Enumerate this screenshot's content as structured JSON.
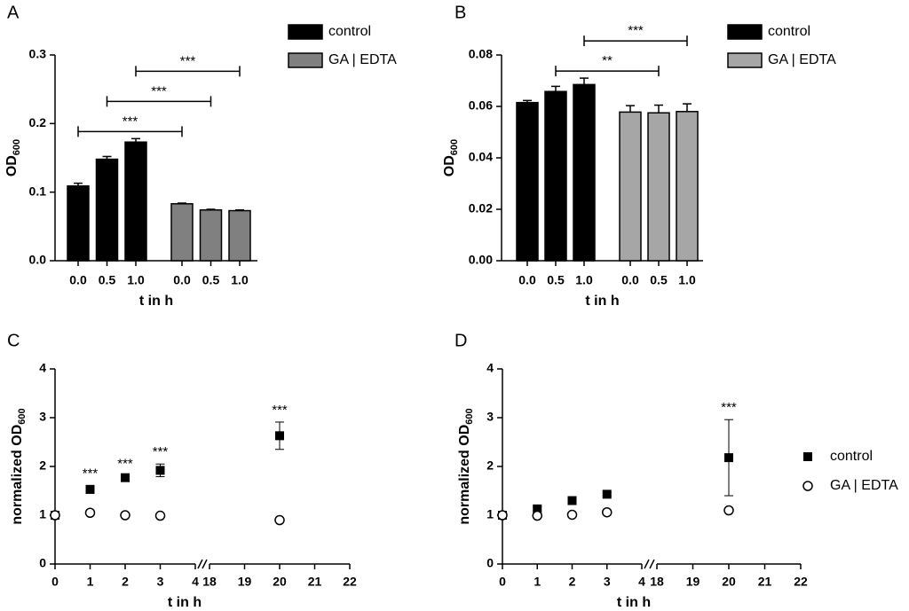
{
  "chart_data": [
    {
      "type": "bar",
      "panel_label": "A",
      "xlabel": "t in h",
      "ylabel": "OD",
      "ylabel_sub": "600",
      "categories": [
        "0.0",
        "0.5",
        "1.0"
      ],
      "series": [
        {
          "name": "control",
          "color": "#000000",
          "values": [
            0.109,
            0.148,
            0.173
          ],
          "errors": [
            0.004,
            0.004,
            0.005
          ]
        },
        {
          "name": "GA | EDTA",
          "color": "#808080",
          "values": [
            0.083,
            0.074,
            0.073
          ],
          "errors": [
            0.001,
            0.001,
            0.001
          ]
        }
      ],
      "ylim": [
        0,
        0.3
      ],
      "yticks": [
        {
          "value": 0,
          "label": "0.0"
        },
        0.1,
        0.2,
        0.3
      ],
      "legend": true,
      "brackets": [
        {
          "index": 0,
          "label": "***"
        },
        {
          "index": 1,
          "label": "***"
        },
        {
          "index": 2,
          "label": "***"
        }
      ]
    },
    {
      "type": "bar",
      "panel_label": "B",
      "xlabel": "t in h",
      "ylabel": "OD",
      "ylabel_sub": "600",
      "categories": [
        "0.0",
        "0.5",
        "1.0"
      ],
      "series": [
        {
          "name": "control",
          "color": "#000000",
          "values": [
            0.0615,
            0.0658,
            0.0685
          ],
          "errors": [
            0.0008,
            0.002,
            0.0025
          ]
        },
        {
          "name": "GA | EDTA",
          "color": "#a6a6a6",
          "values": [
            0.0578,
            0.0575,
            0.058
          ],
          "errors": [
            0.0025,
            0.003,
            0.003
          ]
        }
      ],
      "ylim": [
        0,
        0.08
      ],
      "yticks": [
        {
          "value": 0,
          "label": "0.00"
        },
        {
          "value": 0.02,
          "label": "0.02"
        },
        {
          "value": 0.04,
          "label": "0.04"
        },
        {
          "value": 0.06,
          "label": "0.06"
        },
        {
          "value": 0.08,
          "label": "0.08"
        }
      ],
      "legend": true,
      "brackets": [
        {
          "index": 1,
          "label": "**"
        },
        {
          "index": 2,
          "label": "***"
        }
      ]
    },
    {
      "type": "scatter",
      "panel_label": "C",
      "xlabel": "t in h",
      "ylabel": "normalized OD",
      "ylabel_sub": "600",
      "x": [
        0,
        1,
        2,
        3,
        20
      ],
      "series": [
        {
          "name": "control",
          "color": "#000000",
          "marker": "square",
          "values": [
            1,
            1.53,
            1.77,
            1.92,
            2.63
          ],
          "errors": [
            0.03,
            0.08,
            0.04,
            0.13,
            0.28
          ]
        },
        {
          "name": "GA | EDTA",
          "color": "#000000",
          "marker": "open-circle",
          "values": [
            1,
            1.05,
            1,
            0.99,
            0.9
          ]
        }
      ],
      "xlim": [
        [
          0,
          4
        ],
        [
          18,
          22
        ]
      ],
      "xticks": [
        0,
        1,
        2,
        3,
        4,
        18,
        19,
        20,
        21,
        22
      ],
      "ylim": [
        0,
        4
      ],
      "yticks": [
        0,
        1,
        2,
        3,
        4
      ],
      "legend": false,
      "annotations": [
        {
          "x": 1,
          "label": "***"
        },
        {
          "x": 2,
          "label": "***"
        },
        {
          "x": 3,
          "label": "***"
        },
        {
          "x": 20,
          "label": "***"
        }
      ]
    },
    {
      "type": "scatter",
      "panel_label": "D",
      "xlabel": "t in h",
      "ylabel": "normalized OD",
      "ylabel_sub": "600",
      "x": [
        0,
        1,
        2,
        3,
        20
      ],
      "series": [
        {
          "name": "control",
          "color": "#000000",
          "marker": "square",
          "values": [
            1,
            1.13,
            1.3,
            1.43,
            2.18
          ],
          "errors": [
            0.02,
            0.04,
            0.07,
            0.03,
            0.78
          ]
        },
        {
          "name": "GA | EDTA",
          "color": "#000000",
          "marker": "open-circle",
          "values": [
            1,
            0.99,
            1.01,
            1.06,
            1.1
          ]
        }
      ],
      "xlim": [
        [
          0,
          4
        ],
        [
          18,
          22
        ]
      ],
      "xticks": [
        0,
        1,
        2,
        3,
        4,
        18,
        19,
        20,
        21,
        22
      ],
      "ylim": [
        0,
        4
      ],
      "yticks": [
        0,
        1,
        2,
        3,
        4
      ],
      "legend": true,
      "annotations": [
        {
          "x": 20,
          "label": "***"
        }
      ]
    }
  ]
}
